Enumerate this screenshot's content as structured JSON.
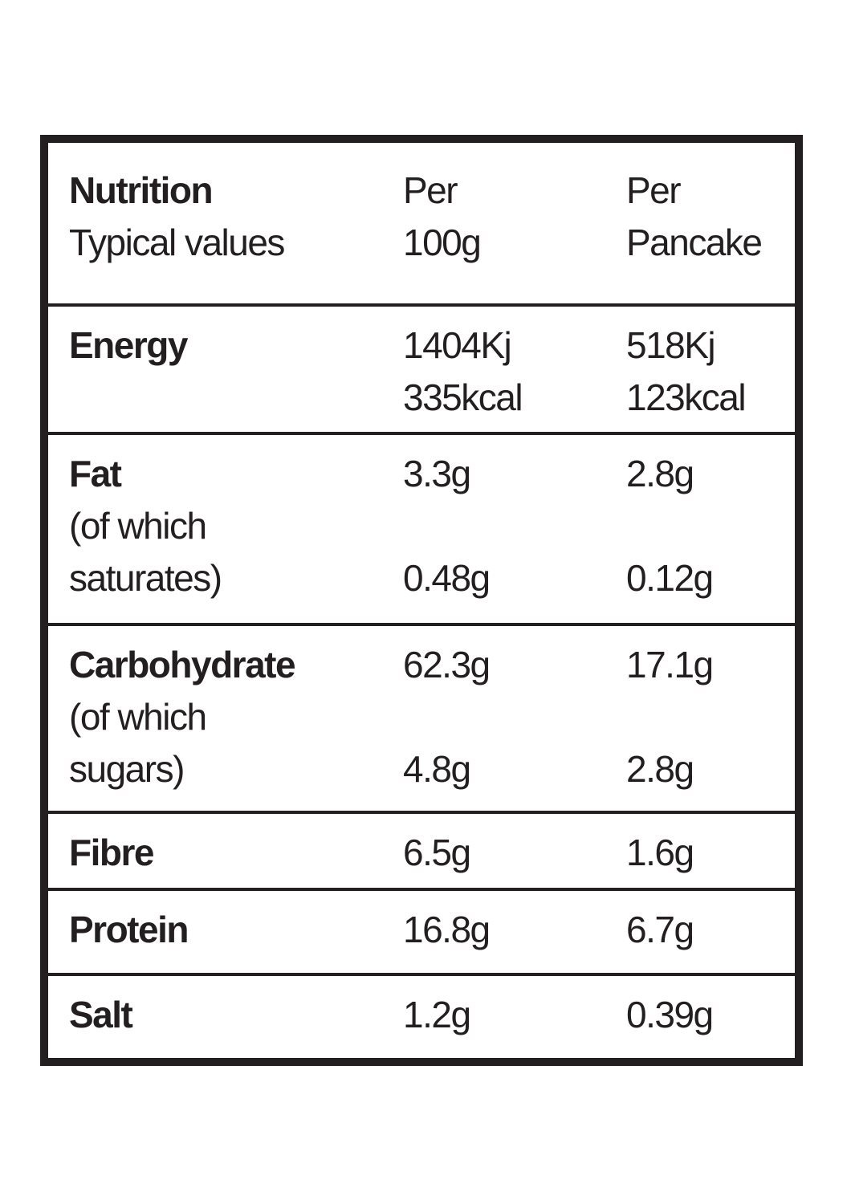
{
  "table": {
    "header": {
      "nutrient": [
        "Nutrition",
        "Typical values"
      ],
      "per_100g": [
        "Per",
        "100g"
      ],
      "per_pancake": [
        "Per",
        "Pancake"
      ]
    },
    "rows": [
      {
        "name": "Energy",
        "per_100g": [
          "1404Kj",
          "335kcal"
        ],
        "per_pancake": [
          "518Kj",
          "123kcal"
        ]
      },
      {
        "name": "Fat",
        "per_100g": [
          "3.3g"
        ],
        "per_pancake": [
          "2.8g"
        ],
        "sub": {
          "name": [
            "(of which",
            "saturates)"
          ],
          "per_100g": "0.48g",
          "per_pancake": "0.12g"
        }
      },
      {
        "name": "Carbohydrate",
        "per_100g": [
          "62.3g"
        ],
        "per_pancake": [
          "17.1g"
        ],
        "sub": {
          "name": [
            "(of which",
            "sugars)"
          ],
          "per_100g": "4.8g",
          "per_pancake": "2.8g"
        }
      },
      {
        "name": "Fibre",
        "per_100g": [
          "6.5g"
        ],
        "per_pancake": [
          "1.6g"
        ]
      },
      {
        "name": "Protein",
        "per_100g": [
          "16.8g"
        ],
        "per_pancake": [
          "6.7g"
        ]
      },
      {
        "name": "Salt",
        "per_100g": [
          "1.2g"
        ],
        "per_pancake": [
          "0.39g"
        ]
      }
    ]
  }
}
